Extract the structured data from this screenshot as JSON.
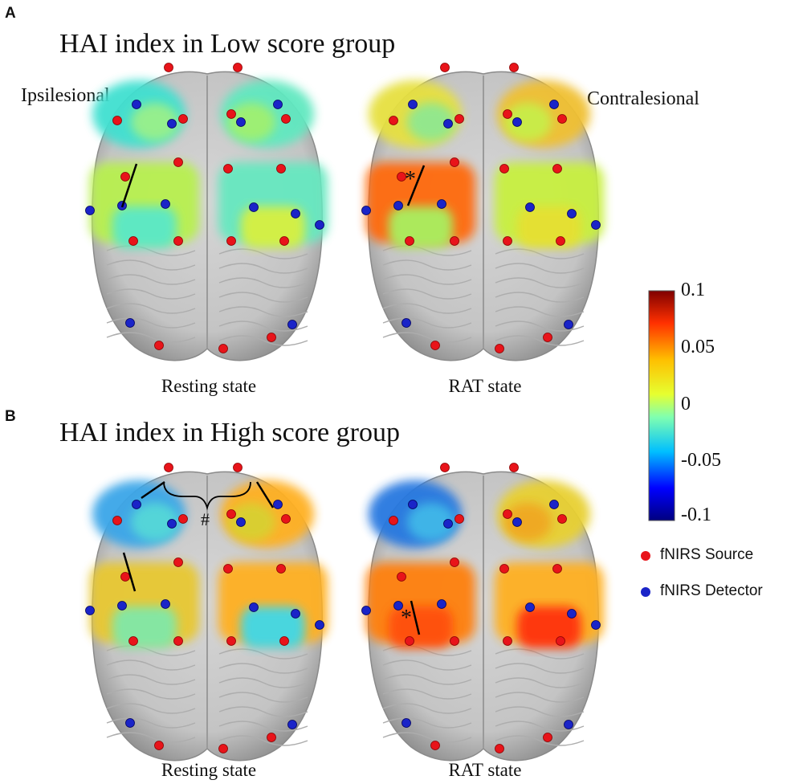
{
  "panels": [
    {
      "letter": "A",
      "title": "HAI index in Low score group",
      "ipsi_label": "Ipsilesional",
      "contra_label": "Contralesional",
      "left_state": "Resting state",
      "right_state": "RAT state",
      "left_annotation": "",
      "right_annotation": "*"
    },
    {
      "letter": "B",
      "title": "HAI index in High score group",
      "ipsi_label": "",
      "contra_label": "",
      "left_state": "Resting state",
      "right_state": "RAT state",
      "left_annotation": "#",
      "right_annotation": "*"
    }
  ],
  "colorbar": {
    "ticks": [
      "0.1",
      "0.05",
      "0",
      "-0.05",
      "-0.1"
    ],
    "range": [
      -0.1,
      0.1
    ],
    "colors": [
      "#00007f",
      "#0000ff",
      "#00bfff",
      "#7fffb0",
      "#e6ff30",
      "#ffbf00",
      "#ff3000",
      "#7f0000"
    ]
  },
  "legend": {
    "source_label": "fNIRS Source",
    "detector_label": "fNIRS Detector",
    "source_color": "#e8141a",
    "detector_color": "#1a24c8"
  },
  "colors": {
    "brain": "#c9c9c9",
    "brain_dark": "#9a9a9a"
  }
}
